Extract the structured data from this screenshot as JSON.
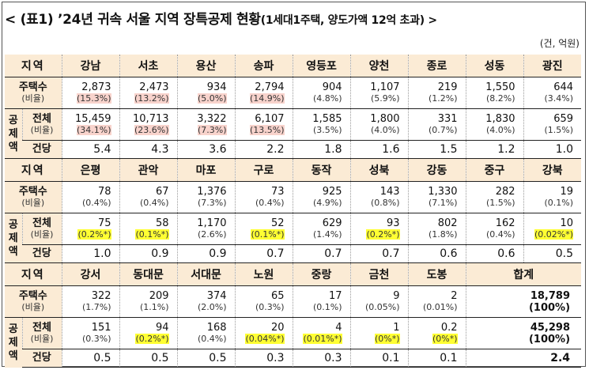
{
  "title": {
    "main": "< (표1) ’24년 귀속 서울 지역 장특공제 현황",
    "sub": "(1세대1주택, 양도가액 12억 초과) >"
  },
  "unit": "(건, 억원)",
  "labels": {
    "region": "지역",
    "houses": "주택수",
    "ratio": "(비율)",
    "deduct_chars": [
      "공",
      "제",
      "액"
    ],
    "total": "전체",
    "per_case": "건당",
    "sum": "합계"
  },
  "sections": [
    {
      "regions": [
        "강남",
        "서초",
        "용산",
        "송파",
        "영등포",
        "양천",
        "종로",
        "성동",
        "광진"
      ],
      "houses": [
        {
          "v": "2,873",
          "p": "(15.3%)",
          "hl": "pink"
        },
        {
          "v": "2,473",
          "p": "(13.2%)",
          "hl": "pink"
        },
        {
          "v": "934",
          "p": "(5.0%)",
          "hl": "pink"
        },
        {
          "v": "2,794",
          "p": "(14.9%)",
          "hl": "pink"
        },
        {
          "v": "904",
          "p": "(4.8%)",
          "hl": ""
        },
        {
          "v": "1,107",
          "p": "(5.9%)",
          "hl": ""
        },
        {
          "v": "219",
          "p": "(1.2%)",
          "hl": ""
        },
        {
          "v": "1,550",
          "p": "(8.2%)",
          "hl": ""
        },
        {
          "v": "644",
          "p": "(3.4%)",
          "hl": ""
        }
      ],
      "total": [
        {
          "v": "15,459",
          "p": "(34.1%)",
          "hl": "pink"
        },
        {
          "v": "10,713",
          "p": "(23.6%)",
          "hl": "pink"
        },
        {
          "v": "3,322",
          "p": "(7.3%)",
          "hl": "pink"
        },
        {
          "v": "6,107",
          "p": "(13.5%)",
          "hl": "pink"
        },
        {
          "v": "1,585",
          "p": "(3.5%)",
          "hl": ""
        },
        {
          "v": "1,800",
          "p": "(4.0%)",
          "hl": ""
        },
        {
          "v": "331",
          "p": "(0.7%)",
          "hl": ""
        },
        {
          "v": "1,830",
          "p": "(4.0%)",
          "hl": ""
        },
        {
          "v": "659",
          "p": "(1.5%)",
          "hl": ""
        }
      ],
      "per_case": [
        "5.4",
        "4.3",
        "3.6",
        "2.2",
        "1.8",
        "1.6",
        "1.5",
        "1.2",
        "1.0"
      ]
    },
    {
      "regions": [
        "은평",
        "관악",
        "마포",
        "구로",
        "동작",
        "성북",
        "강동",
        "중구",
        "강북"
      ],
      "houses": [
        {
          "v": "78",
          "p": "(0.4%)",
          "hl": ""
        },
        {
          "v": "67",
          "p": "(0.4%)",
          "hl": ""
        },
        {
          "v": "1,376",
          "p": "(7.3%)",
          "hl": ""
        },
        {
          "v": "73",
          "p": "(0.4%)",
          "hl": ""
        },
        {
          "v": "925",
          "p": "(4.9%)",
          "hl": ""
        },
        {
          "v": "143",
          "p": "(0.8%)",
          "hl": ""
        },
        {
          "v": "1,330",
          "p": "(7.1%)",
          "hl": ""
        },
        {
          "v": "282",
          "p": "(1.5%)",
          "hl": ""
        },
        {
          "v": "19",
          "p": "(0.1%)",
          "hl": ""
        }
      ],
      "total": [
        {
          "v": "75",
          "p": "(0.2%*)",
          "hl": "yel"
        },
        {
          "v": "58",
          "p": "(0.1%*)",
          "hl": "yel"
        },
        {
          "v": "1,170",
          "p": "(2.6%)",
          "hl": ""
        },
        {
          "v": "52",
          "p": "(0.1%*)",
          "hl": "yel"
        },
        {
          "v": "629",
          "p": "(1.4%)",
          "hl": ""
        },
        {
          "v": "93",
          "p": "(0.2%*)",
          "hl": "yel"
        },
        {
          "v": "802",
          "p": "(1.8%)",
          "hl": ""
        },
        {
          "v": "162",
          "p": "(0.4%)",
          "hl": ""
        },
        {
          "v": "10",
          "p": "(0.02%*)",
          "hl": "yel"
        }
      ],
      "per_case": [
        "1.0",
        "0.9",
        "0.9",
        "0.7",
        "0.7",
        "0.7",
        "0.6",
        "0.6",
        "0.5"
      ]
    },
    {
      "regions": [
        "강서",
        "동대문",
        "서대문",
        "노원",
        "중랑",
        "금천",
        "도봉"
      ],
      "houses": [
        {
          "v": "322",
          "p": "(1.7%)",
          "hl": ""
        },
        {
          "v": "209",
          "p": "(1.1%)",
          "hl": ""
        },
        {
          "v": "374",
          "p": "(2.0%)",
          "hl": ""
        },
        {
          "v": "65",
          "p": "(0.3%)",
          "hl": ""
        },
        {
          "v": "17",
          "p": "(0.1%)",
          "hl": ""
        },
        {
          "v": "9",
          "p": "(0.05%)",
          "hl": ""
        },
        {
          "v": "2",
          "p": "(0.01%)",
          "hl": ""
        }
      ],
      "total": [
        {
          "v": "151",
          "p": "(0.3%)",
          "hl": ""
        },
        {
          "v": "94",
          "p": "(0.2%*)",
          "hl": "yel"
        },
        {
          "v": "168",
          "p": "(0.4%)",
          "hl": ""
        },
        {
          "v": "20",
          "p": "(0.04%*)",
          "hl": "yel"
        },
        {
          "v": "4",
          "p": "(0.01%*)",
          "hl": "yel"
        },
        {
          "v": "1",
          "p": "(0%*)",
          "hl": "yel"
        },
        {
          "v": "0.2",
          "p": "(0%*)",
          "hl": "yel"
        }
      ],
      "per_case": [
        "0.5",
        "0.5",
        "0.5",
        "0.3",
        "0.3",
        "0.1",
        "0.1"
      ],
      "sum": {
        "houses": "18,789",
        "houses_p": "(100%)",
        "total": "45,298",
        "total_p": "(100%)",
        "per_case": "2.4"
      }
    }
  ],
  "colors": {
    "header_bg": "#fbebd5",
    "pink": "#f8d3cc",
    "yellow": "#ffff33"
  }
}
